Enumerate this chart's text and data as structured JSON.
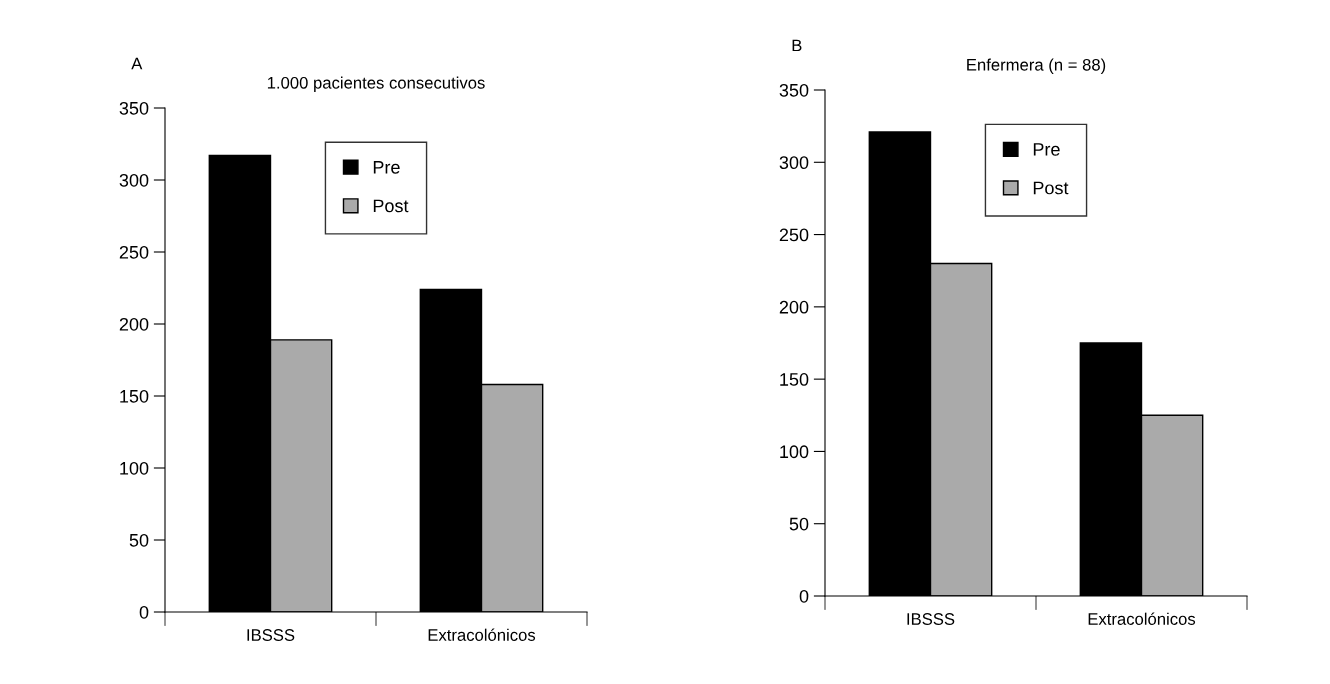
{
  "chart_data": [
    {
      "type": "bar",
      "title": "1.000 pacientes consecutivos",
      "annotations": [
        "A"
      ],
      "categories": [
        "IBSSS",
        "Extracolónicos"
      ],
      "series": [
        {
          "name": "Pre",
          "color": "#000000",
          "values": [
            317,
            224
          ]
        },
        {
          "name": "Post",
          "color": "#aaaaaa",
          "values": [
            189,
            158
          ]
        }
      ],
      "ylim": [
        0,
        350
      ],
      "yticks": [
        0,
        50,
        100,
        150,
        200,
        250,
        300,
        350
      ],
      "grid": false,
      "legend": "top"
    },
    {
      "type": "bar",
      "title": "Enfermera (n = 88)",
      "annotations": [
        "B"
      ],
      "categories": [
        "IBSSS",
        "Extracolónicos"
      ],
      "series": [
        {
          "name": "Pre",
          "color": "#000000",
          "values": [
            321,
            175
          ]
        },
        {
          "name": "Post",
          "color": "#aaaaaa",
          "values": [
            230,
            125
          ]
        }
      ],
      "ylim": [
        0,
        350
      ],
      "yticks": [
        0,
        50,
        100,
        150,
        200,
        250,
        300,
        350
      ],
      "grid": false,
      "legend": "top"
    }
  ]
}
